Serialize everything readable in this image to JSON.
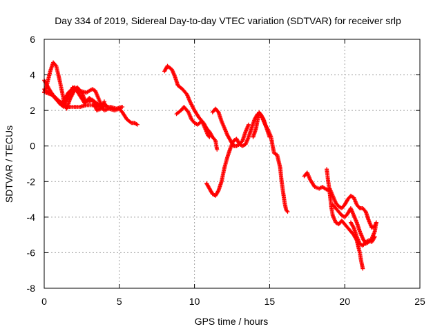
{
  "chart_data": {
    "type": "scatter",
    "title": "Day 334 of 2019, Sidereal Day-to-day VTEC variation (SDTVAR) for receiver srlp",
    "xlabel": "GPS time / hours",
    "ylabel": "SDTVAR / TECUs",
    "xlim": [
      0,
      25
    ],
    "ylim": [
      -8,
      6
    ],
    "x_ticks": [
      0,
      5,
      10,
      15,
      20,
      25
    ],
    "y_ticks": [
      -8,
      -6,
      -4,
      -2,
      0,
      2,
      4,
      6
    ],
    "grid": true,
    "marker": "+",
    "color": "#ff0000",
    "series": [
      {
        "segments": [
          [
            [
              0.0,
              3.0
            ],
            [
              0.2,
              3.5
            ],
            [
              0.4,
              4.2
            ],
            [
              0.6,
              4.7
            ],
            [
              0.8,
              4.5
            ],
            [
              1.0,
              3.8
            ],
            [
              1.2,
              3.0
            ],
            [
              1.35,
              2.3
            ],
            [
              1.5,
              2.1
            ],
            [
              1.7,
              2.6
            ],
            [
              2.0,
              3.1
            ],
            [
              2.2,
              3.3
            ],
            [
              2.5,
              3.0
            ],
            [
              2.7,
              2.6
            ],
            [
              3.0,
              2.5
            ],
            [
              3.2,
              2.6
            ],
            [
              3.5,
              2.4
            ],
            [
              3.8,
              2.2
            ],
            [
              4.0,
              2.0
            ],
            [
              4.3,
              2.1
            ],
            [
              4.7,
              2.0
            ],
            [
              5.0,
              2.1
            ],
            [
              5.2,
              1.9
            ],
            [
              5.5,
              1.5
            ],
            [
              5.8,
              1.3
            ],
            [
              6.0,
              1.3
            ],
            [
              6.2,
              1.2
            ]
          ],
          [
            [
              0.0,
              3.2
            ],
            [
              0.3,
              3.0
            ],
            [
              0.6,
              2.8
            ],
            [
              0.9,
              2.6
            ],
            [
              1.2,
              2.4
            ],
            [
              1.6,
              2.2
            ],
            [
              2.0,
              2.2
            ],
            [
              2.4,
              2.2
            ],
            [
              2.8,
              2.3
            ],
            [
              3.2,
              2.3
            ],
            [
              3.6,
              2.2
            ],
            [
              4.0,
              2.2
            ],
            [
              4.4,
              2.2
            ],
            [
              4.8,
              2.1
            ],
            [
              5.2,
              2.2
            ]
          ],
          [
            [
              0.0,
              3.7
            ],
            [
              0.4,
              3.1
            ],
            [
              0.8,
              2.6
            ],
            [
              1.2,
              2.4
            ],
            [
              1.6,
              3.0
            ],
            [
              2.0,
              3.3
            ],
            [
              2.4,
              3.1
            ],
            [
              2.8,
              3.0
            ],
            [
              3.2,
              3.2
            ],
            [
              3.4,
              3.1
            ],
            [
              3.6,
              2.7
            ],
            [
              3.8,
              2.3
            ],
            [
              4.0,
              2.4
            ],
            [
              4.2,
              2.2
            ]
          ],
          [
            [
              0.1,
              3.0
            ],
            [
              0.5,
              2.9
            ],
            [
              0.8,
              2.7
            ],
            [
              1.0,
              2.4
            ],
            [
              1.3,
              2.2
            ],
            [
              1.6,
              2.8
            ],
            [
              1.9,
              3.3
            ],
            [
              2.1,
              3.2
            ],
            [
              2.4,
              2.8
            ],
            [
              2.7,
              2.4
            ],
            [
              3.0,
              2.7
            ],
            [
              3.3,
              2.5
            ],
            [
              3.5,
              2.0
            ],
            [
              3.8,
              2.1
            ],
            [
              4.0,
              2.5
            ]
          ],
          [
            [
              8.0,
              4.2
            ],
            [
              8.2,
              4.5
            ],
            [
              8.5,
              4.3
            ],
            [
              8.7,
              3.9
            ],
            [
              8.9,
              3.4
            ],
            [
              9.2,
              3.2
            ],
            [
              9.5,
              2.9
            ],
            [
              9.7,
              2.5
            ],
            [
              10.0,
              2.0
            ],
            [
              10.3,
              1.6
            ],
            [
              10.6,
              1.3
            ],
            [
              10.8,
              1.0
            ],
            [
              11.0,
              0.8
            ],
            [
              11.2,
              0.5
            ],
            [
              11.4,
              0.3
            ],
            [
              11.5,
              -0.2
            ]
          ],
          [
            [
              8.8,
              1.8
            ],
            [
              9.1,
              2.0
            ],
            [
              9.3,
              2.2
            ],
            [
              9.6,
              1.9
            ],
            [
              9.8,
              1.5
            ],
            [
              10.0,
              1.3
            ],
            [
              10.2,
              1.2
            ],
            [
              10.5,
              1.4
            ],
            [
              10.7,
              1.0
            ],
            [
              10.9,
              0.6
            ],
            [
              11.0,
              0.5
            ]
          ],
          [
            [
              10.8,
              -2.1
            ],
            [
              11.0,
              -2.4
            ],
            [
              11.2,
              -2.7
            ],
            [
              11.4,
              -2.8
            ],
            [
              11.6,
              -2.5
            ],
            [
              11.8,
              -2.0
            ],
            [
              12.0,
              -1.2
            ],
            [
              12.2,
              -0.6
            ],
            [
              12.4,
              -0.1
            ],
            [
              12.6,
              0.3
            ],
            [
              12.8,
              0.4
            ],
            [
              13.0,
              0.1
            ],
            [
              13.2,
              0.0
            ],
            [
              13.4,
              0.1
            ],
            [
              13.6,
              0.5
            ],
            [
              13.8,
              1.0
            ],
            [
              14.0,
              1.5
            ],
            [
              14.2,
              1.8
            ],
            [
              14.4,
              1.8
            ],
            [
              14.6,
              1.5
            ],
            [
              14.8,
              1.0
            ],
            [
              15.0,
              0.5
            ]
          ],
          [
            [
              11.2,
              1.9
            ],
            [
              11.4,
              2.1
            ],
            [
              11.6,
              1.9
            ],
            [
              11.8,
              1.4
            ],
            [
              12.0,
              1.0
            ],
            [
              12.2,
              0.6
            ],
            [
              12.4,
              0.3
            ],
            [
              12.6,
              0.0
            ],
            [
              12.8,
              0.0
            ],
            [
              13.0,
              0.1
            ],
            [
              13.2,
              0.3
            ],
            [
              13.4,
              0.8
            ],
            [
              13.6,
              1.2
            ]
          ],
          [
            [
              13.9,
              0.5
            ],
            [
              14.1,
              1.0
            ],
            [
              14.3,
              1.9
            ],
            [
              14.5,
              1.6
            ],
            [
              14.7,
              1.2
            ],
            [
              14.9,
              0.9
            ],
            [
              15.1,
              0.5
            ],
            [
              15.2,
              0.0
            ],
            [
              15.3,
              -0.4
            ],
            [
              15.5,
              -0.5
            ],
            [
              15.7,
              -1.2
            ],
            [
              15.8,
              -2.0
            ],
            [
              15.9,
              -2.6
            ],
            [
              16.0,
              -3.2
            ],
            [
              16.1,
              -3.6
            ],
            [
              16.2,
              -3.7
            ]
          ],
          [
            [
              17.3,
              -1.7
            ],
            [
              17.5,
              -1.5
            ],
            [
              17.7,
              -1.9
            ],
            [
              18.0,
              -2.3
            ],
            [
              18.3,
              -2.4
            ],
            [
              18.5,
              -2.3
            ],
            [
              18.7,
              -2.4
            ],
            [
              18.9,
              -2.5
            ],
            [
              19.0,
              -2.4
            ],
            [
              19.2,
              -2.8
            ],
            [
              19.4,
              -3.2
            ],
            [
              19.6,
              -3.4
            ],
            [
              19.8,
              -3.5
            ],
            [
              20.0,
              -3.3
            ],
            [
              20.2,
              -3.0
            ],
            [
              20.4,
              -2.8
            ],
            [
              20.6,
              -2.9
            ],
            [
              20.8,
              -3.3
            ],
            [
              21.0,
              -3.5
            ],
            [
              21.2,
              -3.5
            ],
            [
              21.4,
              -3.7
            ],
            [
              21.6,
              -4.2
            ],
            [
              21.8,
              -4.6
            ],
            [
              22.0,
              -4.5
            ],
            [
              22.1,
              -4.3
            ]
          ],
          [
            [
              18.8,
              -1.3
            ],
            [
              18.9,
              -2.0
            ],
            [
              19.0,
              -2.6
            ],
            [
              19.1,
              -3.4
            ],
            [
              19.2,
              -3.9
            ],
            [
              19.4,
              -4.3
            ],
            [
              19.6,
              -4.4
            ],
            [
              19.8,
              -4.2
            ],
            [
              20.0,
              -4.4
            ],
            [
              20.2,
              -4.6
            ],
            [
              20.4,
              -4.8
            ],
            [
              20.6,
              -5.0
            ],
            [
              20.8,
              -5.3
            ],
            [
              21.0,
              -6.0
            ],
            [
              21.1,
              -6.5
            ],
            [
              21.2,
              -6.9
            ]
          ],
          [
            [
              19.2,
              -3.3
            ],
            [
              19.5,
              -3.6
            ],
            [
              19.8,
              -3.9
            ],
            [
              20.0,
              -4.0
            ],
            [
              20.2,
              -3.8
            ],
            [
              20.4,
              -3.5
            ],
            [
              20.6,
              -3.9
            ],
            [
              20.8,
              -4.3
            ],
            [
              21.0,
              -4.8
            ],
            [
              21.2,
              -5.2
            ],
            [
              21.4,
              -5.5
            ],
            [
              21.6,
              -5.4
            ],
            [
              21.8,
              -5.2
            ],
            [
              22.0,
              -4.8
            ],
            [
              22.1,
              -4.3
            ]
          ],
          [
            [
              20.4,
              -4.3
            ],
            [
              20.6,
              -4.6
            ],
            [
              20.8,
              -5.1
            ],
            [
              21.0,
              -5.5
            ],
            [
              21.2,
              -5.6
            ],
            [
              21.4,
              -5.4
            ],
            [
              21.6,
              -5.3
            ],
            [
              21.8,
              -5.4
            ],
            [
              22.0,
              -5.1
            ]
          ]
        ]
      }
    ]
  }
}
